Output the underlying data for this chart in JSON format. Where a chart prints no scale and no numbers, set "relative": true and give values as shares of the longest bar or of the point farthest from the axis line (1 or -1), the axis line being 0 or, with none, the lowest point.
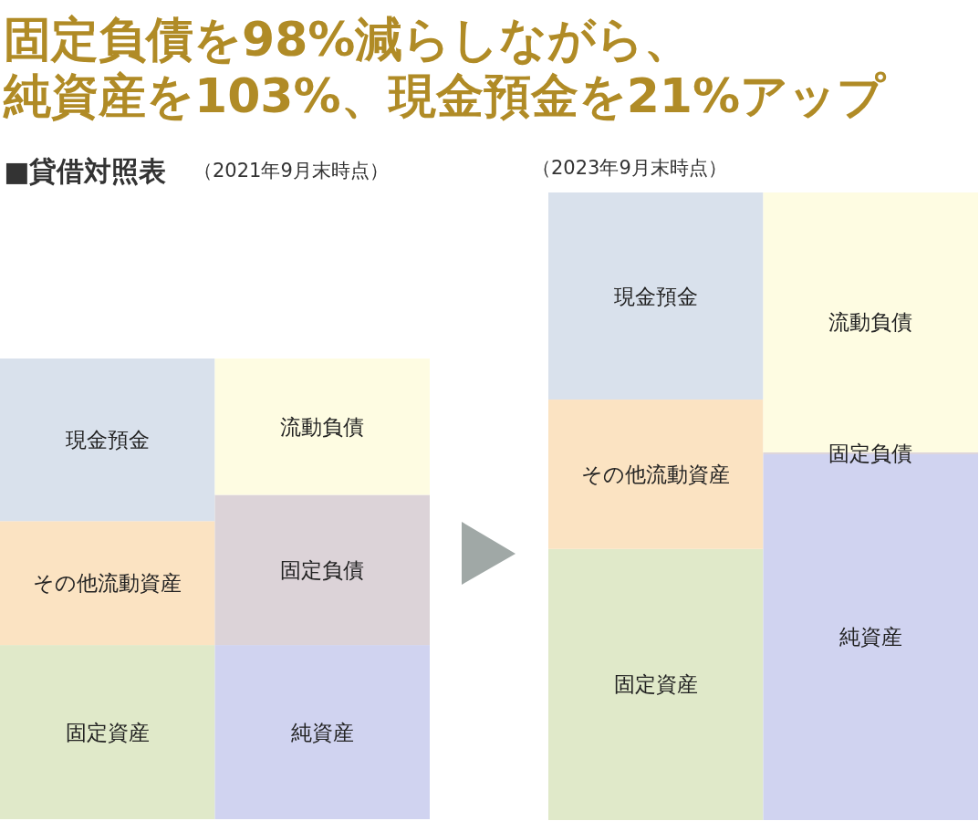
{
  "chart_data": [
    {
      "type": "bar",
      "stacked": true,
      "relative": true,
      "title": "固定負債を98%減らしながら、純資産を103%、現金預金を21%アップ",
      "subtitle": "■貸借対照表",
      "annotations": [
        "（2021年9月末時点）"
      ],
      "categories": [
        null,
        null
      ],
      "series": [
        {
          "name": "固定資産",
          "color": "#e0e9c9",
          "values": [
            0.378,
            null
          ]
        },
        {
          "name": "その他流動資産",
          "color": "#fbe3c2",
          "values": [
            0.269,
            null
          ]
        },
        {
          "name": "現金預金",
          "color": "#d9e1ec",
          "values": [
            0.353,
            null
          ]
        },
        {
          "name": "純資産",
          "color": "#d0d3f0",
          "values": [
            null,
            0.378
          ]
        },
        {
          "name": "固定負債",
          "color": "#dcd3d8",
          "values": [
            null,
            0.326
          ]
        },
        {
          "name": "流動負債",
          "color": "#fefce2",
          "values": [
            null,
            0.296
          ]
        }
      ]
    },
    {
      "type": "bar",
      "stacked": true,
      "relative": true,
      "annotations": [
        "（2023年9月末時点）"
      ],
      "categories": [
        null,
        null
      ],
      "series": [
        {
          "name": "固定資産",
          "color": "#e0e9c9",
          "values": [
            0.432,
            null
          ]
        },
        {
          "name": "その他流動資産",
          "color": "#fbe3c2",
          "values": [
            0.238,
            null
          ]
        },
        {
          "name": "現金預金",
          "color": "#d9e1ec",
          "values": [
            0.33,
            null
          ]
        },
        {
          "name": "純資産",
          "color": "#d0d3f0",
          "values": [
            null,
            0.583
          ]
        },
        {
          "name": "固定負債",
          "color": "#dcd3d8",
          "values": [
            null,
            0.003
          ]
        },
        {
          "name": "流動負債",
          "color": "#fefce2",
          "values": [
            null,
            0.414
          ]
        }
      ]
    }
  ]
}
